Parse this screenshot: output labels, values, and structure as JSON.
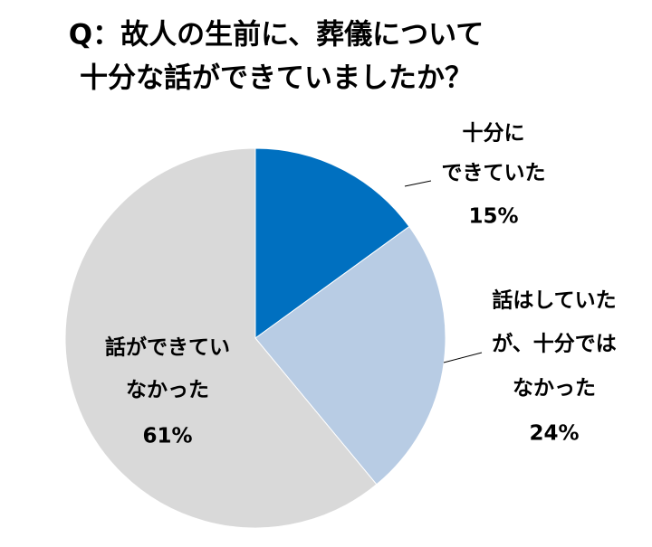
{
  "chart_data": {
    "type": "pie",
    "title": [
      "Q：故人の生前に、葬儀について",
      "十分な話ができていましたか？"
    ],
    "categories": [
      [
        "十分に",
        "できていた"
      ],
      [
        "話はしていた",
        "が、十分では",
        "なかった"
      ],
      [
        "話ができてい",
        "なかった"
      ]
    ],
    "values": [
      15,
      24,
      61
    ],
    "value_labels": [
      "15%",
      "24%",
      "61%"
    ],
    "colors": [
      "#0070c0",
      "#b8cce4",
      "#d9d9d9"
    ]
  }
}
